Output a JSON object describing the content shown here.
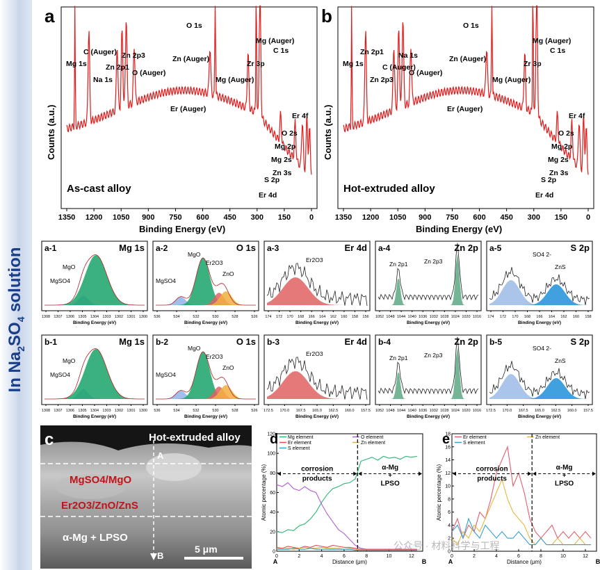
{
  "side_label": {
    "pre": "In Na",
    "sub1": "2",
    "mid": "SO",
    "sub2": "4",
    "post": " solution"
  },
  "survey": [
    {
      "letter": "a",
      "condition": "As-cast alloy",
      "xlabel": "Binding Energy (eV)",
      "ylabel": "Counts (a.u.)",
      "xticks": [
        "1350",
        "1200",
        "1050",
        "900",
        "750",
        "600",
        "450",
        "300",
        "150",
        "0"
      ],
      "peaks": [
        "Mg 1s",
        "C (Auger)",
        "Na 1s",
        "Zn 2p1",
        "Zn 2p3",
        "O (Auger)",
        "Zn (Auger)",
        "Er (Auger)",
        "O 1s",
        "Mg (Auger)",
        "Zr 3p",
        "Mg (Auger)",
        "C 1s",
        "Er 4f",
        "O 2s",
        "Mg 2p",
        "Mg 2s",
        "Zn 3s",
        "S 2p",
        "Er 4d"
      ]
    },
    {
      "letter": "b",
      "condition": "Hot-extruded alloy",
      "xlabel": "Binding Energy (eV)",
      "ylabel": "Counts (a.u.)",
      "xticks": [
        "1350",
        "1200",
        "1050",
        "900",
        "750",
        "600",
        "450",
        "300",
        "150",
        "0"
      ],
      "peaks": [
        "Mg 1s",
        "Zn 2p1",
        "Zn 2p3",
        "C (Auger)",
        "Na 1s",
        "O (Auger)",
        "Zn (Auger)",
        "Er (Auger)",
        "O 1s",
        "Mg (Auger)",
        "Zr 3p",
        "Mg (Auger)",
        "C 1s",
        "Er 4f",
        "O 2s",
        "Mg 2p",
        "Mg 2s",
        "Zn 3s",
        "S 2p",
        "Er 4d"
      ]
    }
  ],
  "hr_panels": [
    {
      "id": "a-1",
      "title": "Mg 1s",
      "xlabel": "Binding Energy (eV)",
      "ticks": [
        "1308",
        "1307",
        "1306",
        "1305",
        "1304",
        "1303",
        "1302",
        "1301",
        "1300"
      ],
      "labels": [
        "MgO",
        "MgSO4"
      ]
    },
    {
      "id": "a-2",
      "title": "O 1s",
      "xlabel": "Binding Energy (eV)",
      "ticks": [
        "536",
        "534",
        "532",
        "530",
        "528",
        "526"
      ],
      "labels": [
        "MgO",
        "Er2O3",
        "MgSO4",
        "ZnO"
      ]
    },
    {
      "id": "a-3",
      "title": "Er 4d",
      "xlabel": "Binding Energy (eV)",
      "ticks": [
        "174",
        "172",
        "170",
        "168",
        "166",
        "164",
        "162",
        "160",
        "158",
        "156"
      ],
      "labels": [
        "Er2O3"
      ]
    },
    {
      "id": "a-4",
      "title": "Zn 2p",
      "xlabel": "Binding Energy (eV)",
      "ticks": [
        "1052",
        "1048",
        "1044",
        "1040",
        "1036",
        "1032",
        "1028",
        "1024",
        "1020",
        "1016"
      ],
      "labels": [
        "Zn 2p1",
        "Zn 2p3"
      ]
    },
    {
      "id": "a-5",
      "title": "S 2p",
      "xlabel": "Binding Energy (eV)",
      "ticks": [
        "174",
        "172",
        "170",
        "168",
        "166",
        "164",
        "162",
        "160",
        "158"
      ],
      "labels": [
        "SO4 2-",
        "ZnS"
      ]
    },
    {
      "id": "b-1",
      "title": "Mg 1s",
      "xlabel": "Binding Energy (eV)",
      "ticks": [
        "1308",
        "1307",
        "1306",
        "1305",
        "1304",
        "1303",
        "1302",
        "1301",
        "1300"
      ],
      "labels": [
        "MgO",
        "MgSO4"
      ]
    },
    {
      "id": "b-2",
      "title": "O 1s",
      "xlabel": "Binding Energy (eV)",
      "ticks": [
        "536",
        "534",
        "532",
        "530",
        "528",
        "526"
      ],
      "labels": [
        "MgO",
        "Er2O3",
        "MgSO4",
        "ZnO"
      ]
    },
    {
      "id": "b-3",
      "title": "Er 4d",
      "xlabel": "Binding Energy (eV)",
      "ticks": [
        "172.5",
        "170.0",
        "167.5",
        "165.0",
        "162.5",
        "160.0",
        "157.5"
      ],
      "labels": [
        "Er2O3"
      ]
    },
    {
      "id": "b-4",
      "title": "Zn 2p",
      "xlabel": "Binding Energy (eV)",
      "ticks": [
        "1052",
        "1048",
        "1044",
        "1040",
        "1036",
        "1032",
        "1028",
        "1024",
        "1020",
        "1016"
      ],
      "labels": [
        "Zn 2p1",
        "Zn 2p3"
      ]
    },
    {
      "id": "b-5",
      "title": "S 2p",
      "xlabel": "Binding Energy (eV)",
      "ticks": [
        "172.5",
        "170.0",
        "167.5",
        "165.0",
        "162.5",
        "160.0",
        "157.5"
      ],
      "labels": [
        "SO4 2-",
        "ZnS"
      ]
    }
  ],
  "sem": {
    "letter": "c",
    "title": "Hot-extruded alloy",
    "layer1": "MgSO4/MgO",
    "layer2": "Er2O3/ZnO/ZnS",
    "layer3": "α-Mg + LPSO",
    "point_a": "A",
    "point_b": "B",
    "scale": "5 μm"
  },
  "chart_data": [
    {
      "type": "line",
      "panel": "d",
      "xlabel": "Distance (μm)",
      "ylabel": "Atomic percentage (%)",
      "xlim": [
        0,
        13
      ],
      "ylim": [
        0,
        120
      ],
      "xticks": [
        "0",
        "2",
        "4",
        "6",
        "8",
        "10",
        "12"
      ],
      "yticks": [
        "0",
        "20",
        "40",
        "60",
        "80",
        "100",
        "120"
      ],
      "boundary_x": 7.2,
      "region_left": "corrosion products",
      "region_right_1": "α-Mg",
      "region_right_2": "+",
      "region_right_3": "LPSO",
      "end_a": "A",
      "end_b": "B",
      "x": [
        0,
        0.5,
        1,
        1.5,
        2,
        2.5,
        3,
        3.5,
        4,
        4.5,
        5,
        5.5,
        6,
        6.5,
        7,
        7.5,
        8,
        8.5,
        9,
        9.5,
        10,
        10.5,
        11,
        11.5,
        12,
        12.5
      ],
      "series": [
        {
          "name": "Mg element",
          "color": "#2bb673",
          "values": [
            20,
            19,
            22,
            21,
            26,
            28,
            33,
            40,
            50,
            58,
            64,
            66,
            69,
            70,
            74,
            92,
            94,
            96,
            93,
            97,
            95,
            96,
            94,
            97,
            96,
            97
          ]
        },
        {
          "name": "O  element",
          "color": "#b060d0",
          "values": [
            68,
            66,
            70,
            64,
            62,
            66,
            62,
            60,
            48,
            38,
            30,
            22,
            18,
            12,
            6,
            3,
            2,
            2,
            2,
            2,
            2,
            2,
            2,
            2,
            2,
            2
          ]
        },
        {
          "name": "Er element",
          "color": "#e05050",
          "values": [
            4,
            3,
            5,
            4,
            3,
            5,
            4,
            6,
            5,
            4,
            6,
            5,
            4,
            4,
            3,
            2,
            2,
            2,
            2,
            2,
            2,
            2,
            2,
            2,
            2,
            2
          ]
        },
        {
          "name": "Zn element",
          "color": "#e0b040",
          "values": [
            3,
            2,
            3,
            2,
            3,
            4,
            3,
            3,
            4,
            3,
            3,
            3,
            2,
            3,
            2,
            1,
            1,
            1,
            1,
            1,
            1,
            1,
            1,
            1,
            1,
            1
          ]
        },
        {
          "name": "S   element",
          "color": "#30a0d0",
          "values": [
            2,
            2,
            2,
            3,
            2,
            2,
            3,
            2,
            2,
            2,
            2,
            2,
            2,
            2,
            1,
            1,
            1,
            1,
            1,
            1,
            1,
            1,
            1,
            1,
            1,
            1
          ]
        }
      ]
    },
    {
      "type": "line",
      "panel": "e",
      "xlabel": "Distance (μm)",
      "ylabel": "Atomic percentage (%)",
      "xlim": [
        0,
        13
      ],
      "ylim": [
        0,
        18
      ],
      "xticks": [
        "0",
        "2",
        "4",
        "6",
        "8",
        "10",
        "12"
      ],
      "yticks": [
        "0",
        "2",
        "4",
        "6",
        "8",
        "10",
        "12",
        "14",
        "16",
        "18"
      ],
      "boundary_x": 7.2,
      "region_left": "corrosion products",
      "region_right_1": "α-Mg",
      "region_right_2": "+",
      "region_right_3": "LPSO",
      "end_a": "A",
      "end_b": "B",
      "x": [
        0,
        0.5,
        1,
        1.5,
        2,
        2.5,
        3,
        3.5,
        4,
        4.5,
        5,
        5.5,
        6,
        6.5,
        7,
        7.5,
        8,
        8.5,
        9,
        9.5,
        10,
        10.5,
        11,
        11.5,
        12,
        12.5
      ],
      "series": [
        {
          "name": "Er element",
          "color": "#e06070",
          "values": [
            3,
            5,
            2,
            4,
            3,
            6,
            5,
            8,
            12,
            14,
            16,
            10,
            12,
            9,
            5,
            3,
            2,
            3,
            4,
            2,
            3,
            2,
            3,
            2,
            3,
            2
          ]
        },
        {
          "name": "Zn element",
          "color": "#e8b840",
          "values": [
            2,
            1,
            3,
            2,
            4,
            3,
            5,
            7,
            9,
            11,
            8,
            6,
            5,
            4,
            2,
            1,
            2,
            1,
            1,
            2,
            1,
            1,
            1,
            2,
            1,
            1
          ]
        },
        {
          "name": "S   element",
          "color": "#30a0d0",
          "values": [
            3,
            4,
            2,
            5,
            3,
            2,
            4,
            3,
            2,
            3,
            2,
            2,
            3,
            2,
            1,
            1,
            2,
            1,
            1,
            1,
            1,
            1,
            1,
            1,
            1,
            1
          ]
        }
      ]
    }
  ],
  "watermark": "公众号 · 材料科学与工程"
}
